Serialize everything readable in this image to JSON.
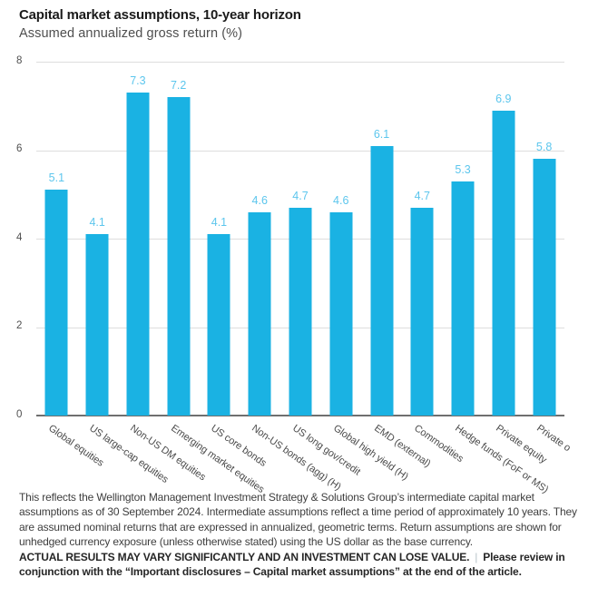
{
  "header": {
    "title": "Capital market assumptions, 10-year horizon",
    "subtitle": "Assumed annualized gross return (%)"
  },
  "chart_data": {
    "type": "bar",
    "title": "Capital market assumptions, 10-year horizon",
    "subtitle": "Assumed annualized gross return (%)",
    "categories": [
      "Global equities",
      "US large-cap equities",
      "Non-US DM equities",
      "Emerging market equities",
      "US core bonds",
      "Non-US bonds (agg) (H)",
      "US long gov/credit",
      "Global high yield (H)",
      "EMD (external)",
      "Commodities",
      "Hedge funds (FoF or MS)",
      "Private equity",
      "Private o"
    ],
    "values": [
      5.1,
      4.1,
      7.3,
      7.2,
      4.1,
      4.6,
      4.7,
      4.6,
      6.1,
      4.7,
      5.3,
      6.9,
      5.8
    ],
    "value_labels": [
      "5.1",
      "4.1",
      "7.3",
      "7.2",
      "4.1",
      "4.6",
      "4.7",
      "4.6",
      "6.1",
      "4.7",
      "5.3",
      "6.9",
      "5.8"
    ],
    "xlabel": "",
    "ylabel": "",
    "ylim": [
      0,
      8
    ],
    "yticks": [
      0,
      2,
      4,
      6,
      8
    ],
    "grid": "horizontal",
    "legend": "none",
    "bar_color": "#1ab2e3",
    "value_label_color": "#5cc6ed",
    "gridline_color": "#dedede",
    "axis_color": "#6f6f6f"
  },
  "footnote": {
    "body": "This reflects the Wellington Management Investment Strategy & Solutions Group’s intermediate capital market assumptions as of 30 September 2024. Intermediate assumptions reflect a time period of approximately 10 years. They are assumed nominal returns that are expressed in annualized, geometric terms. Return assumptions are shown for unhedged currency exposure (unless otherwise stated) using the US dollar as the base currency.",
    "warning": "ACTUAL RESULTS MAY VARY SIGNIFICANTLY AND AN INVESTMENT CAN LOSE VALUE.",
    "separator": "|",
    "review": "Please review in conjunction with the “Important disclosures – Capital market assumptions” at the end of the article."
  }
}
